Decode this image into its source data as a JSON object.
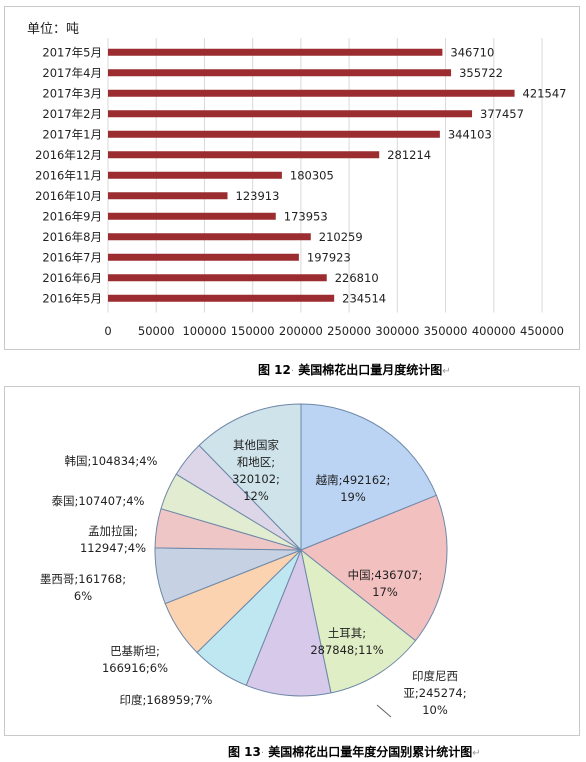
{
  "chart_data": [
    {
      "type": "bar",
      "orientation": "horizontal",
      "unit_label": "单位：吨",
      "categories": [
        "2017年5月",
        "2017年4月",
        "2017年3月",
        "2017年2月",
        "2017年1月",
        "2016年12月",
        "2016年11月",
        "2016年10月",
        "2016年9月",
        "2016年8月",
        "2016年7月",
        "2016年6月",
        "2016年5月"
      ],
      "values": [
        346710,
        355722,
        421547,
        377457,
        344103,
        281214,
        180305,
        123913,
        173953,
        210259,
        197923,
        226810,
        234514
      ],
      "xticks": [
        "0",
        "50000",
        "100000",
        "150000",
        "200000",
        "250000",
        "300000",
        "350000",
        "400000",
        "450000"
      ],
      "xlim": [
        0,
        450000
      ],
      "grid": "vertical",
      "bar_color": "#9b2d30"
    },
    {
      "type": "pie",
      "slices": [
        {
          "label": "越南;492162;\n19%",
          "value": 492162,
          "percent": 19,
          "color": "#bcd4f3"
        },
        {
          "label": "中国;436707;\n17%",
          "value": 436707,
          "percent": 17,
          "color": "#f3c0c0"
        },
        {
          "label": "土耳其;\n287848;11%",
          "value": 287848,
          "percent": 11,
          "color": "#dfeec4"
        },
        {
          "label": "印度尼西\n亚;245274;\n10%",
          "value": 245274,
          "percent": 10,
          "color": "#d6c9ea"
        },
        {
          "label": "印度;168959;7%",
          "value": 168959,
          "percent": 7,
          "color": "#bfe7f1"
        },
        {
          "label": "巴基斯坦;\n166916;6%",
          "value": 166916,
          "percent": 6,
          "color": "#fbd3b0"
        },
        {
          "label": "墨西哥;161768;\n6%",
          "value": 161768,
          "percent": 6,
          "color": "#c6d2e3"
        },
        {
          "label": "孟加拉国;\n112947;4%",
          "value": 112947,
          "percent": 4,
          "color": "#eec6c6"
        },
        {
          "label": "泰国;107407;4%",
          "value": 107407,
          "percent": 4,
          "color": "#e2ecd0"
        },
        {
          "label": "韩国;104834;4%",
          "value": 104834,
          "percent": 4,
          "color": "#dcd6e8"
        },
        {
          "label": "其他国家\n和地区;\n320102;\n12%",
          "value": 320102,
          "percent": 12,
          "color": "#cfe3ea"
        }
      ]
    }
  ],
  "captions": {
    "fig12": "图 12",
    "fig12_title": "美国棉花出口量月度统计图",
    "fig13": "图 13",
    "fig13_title": "美国棉花出口量年度分国别累计统计图"
  }
}
